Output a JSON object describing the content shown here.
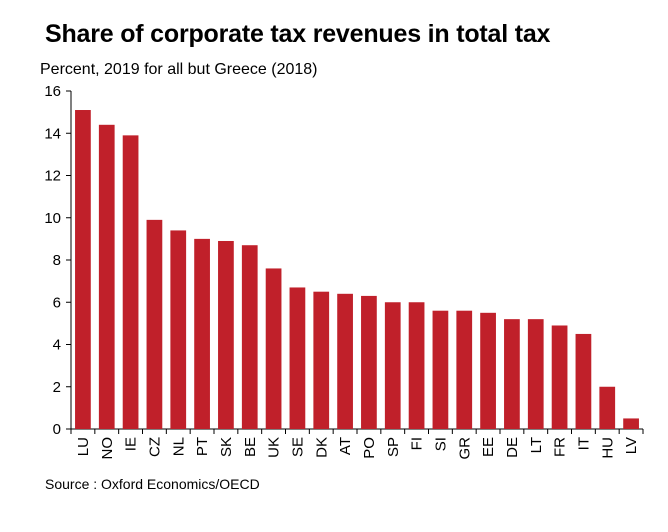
{
  "chart_data": {
    "type": "bar",
    "title": "Share of corporate tax revenues in total tax",
    "subtitle": "Percent, 2019 for all but Greece (2018)",
    "source": "Source : Oxford Economics/OECD",
    "xlabel": "",
    "ylabel": "",
    "ylim": [
      0,
      16
    ],
    "yticks": [
      0,
      2,
      4,
      6,
      8,
      10,
      12,
      14,
      16
    ],
    "grid": false,
    "legend": "none",
    "bar_color": "#c0202a",
    "categories": [
      "LU",
      "NO",
      "IE",
      "CZ",
      "NL",
      "PT",
      "SK",
      "BE",
      "UK",
      "SE",
      "DK",
      "AT",
      "PO",
      "SP",
      "FI",
      "SI",
      "GR",
      "EE",
      "DE",
      "LT",
      "FR",
      "IT",
      "HU",
      "LV"
    ],
    "values": [
      15.1,
      14.4,
      13.9,
      9.9,
      9.4,
      9.0,
      8.9,
      8.7,
      7.6,
      6.7,
      6.5,
      6.4,
      6.3,
      6.0,
      6.0,
      5.6,
      5.6,
      5.5,
      5.2,
      5.2,
      4.9,
      4.5,
      2.0,
      0.5
    ]
  }
}
